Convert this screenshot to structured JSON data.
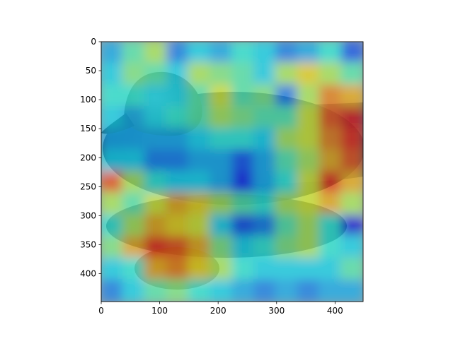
{
  "chart_data": {
    "type": "heatmap",
    "title": "",
    "xlabel": "",
    "ylabel": "",
    "xlim": [
      0,
      448
    ],
    "ylim": [
      448,
      0
    ],
    "xticks": [
      0,
      100,
      200,
      300,
      400
    ],
    "yticks": [
      0,
      50,
      100,
      150,
      200,
      250,
      300,
      350,
      400
    ],
    "colormap": "jet",
    "overlay_image": "duck-swimming-on-water",
    "grid": false,
    "rows": 12,
    "cols": 12,
    "values": [
      [
        0.3,
        0.45,
        0.55,
        0.25,
        0.35,
        0.3,
        0.4,
        0.35,
        0.25,
        0.3,
        0.4,
        0.2
      ],
      [
        0.35,
        0.5,
        0.45,
        0.35,
        0.55,
        0.5,
        0.45,
        0.35,
        0.55,
        0.65,
        0.55,
        0.45
      ],
      [
        0.4,
        0.4,
        0.35,
        0.35,
        0.45,
        0.6,
        0.45,
        0.5,
        0.25,
        0.55,
        0.75,
        0.7
      ],
      [
        0.35,
        0.3,
        0.35,
        0.4,
        0.45,
        0.55,
        0.5,
        0.45,
        0.45,
        0.6,
        0.8,
        0.9
      ],
      [
        0.3,
        0.3,
        0.3,
        0.3,
        0.35,
        0.4,
        0.4,
        0.35,
        0.55,
        0.6,
        0.75,
        0.85
      ],
      [
        0.35,
        0.35,
        0.25,
        0.25,
        0.3,
        0.3,
        0.2,
        0.3,
        0.45,
        0.55,
        0.7,
        0.8
      ],
      [
        0.8,
        0.55,
        0.4,
        0.35,
        0.35,
        0.3,
        0.15,
        0.3,
        0.4,
        0.6,
        0.85,
        0.7
      ],
      [
        0.55,
        0.45,
        0.6,
        0.7,
        0.65,
        0.55,
        0.45,
        0.4,
        0.55,
        0.6,
        0.7,
        0.55
      ],
      [
        0.4,
        0.55,
        0.7,
        0.65,
        0.6,
        0.35,
        0.2,
        0.25,
        0.45,
        0.55,
        0.4,
        0.1
      ],
      [
        0.5,
        0.7,
        0.85,
        0.8,
        0.7,
        0.5,
        0.35,
        0.4,
        0.5,
        0.55,
        0.4,
        0.35
      ],
      [
        0.35,
        0.4,
        0.7,
        0.75,
        0.65,
        0.55,
        0.4,
        0.35,
        0.35,
        0.35,
        0.35,
        0.45
      ],
      [
        0.25,
        0.35,
        0.45,
        0.5,
        0.4,
        0.35,
        0.3,
        0.25,
        0.3,
        0.25,
        0.3,
        0.3
      ]
    ]
  }
}
